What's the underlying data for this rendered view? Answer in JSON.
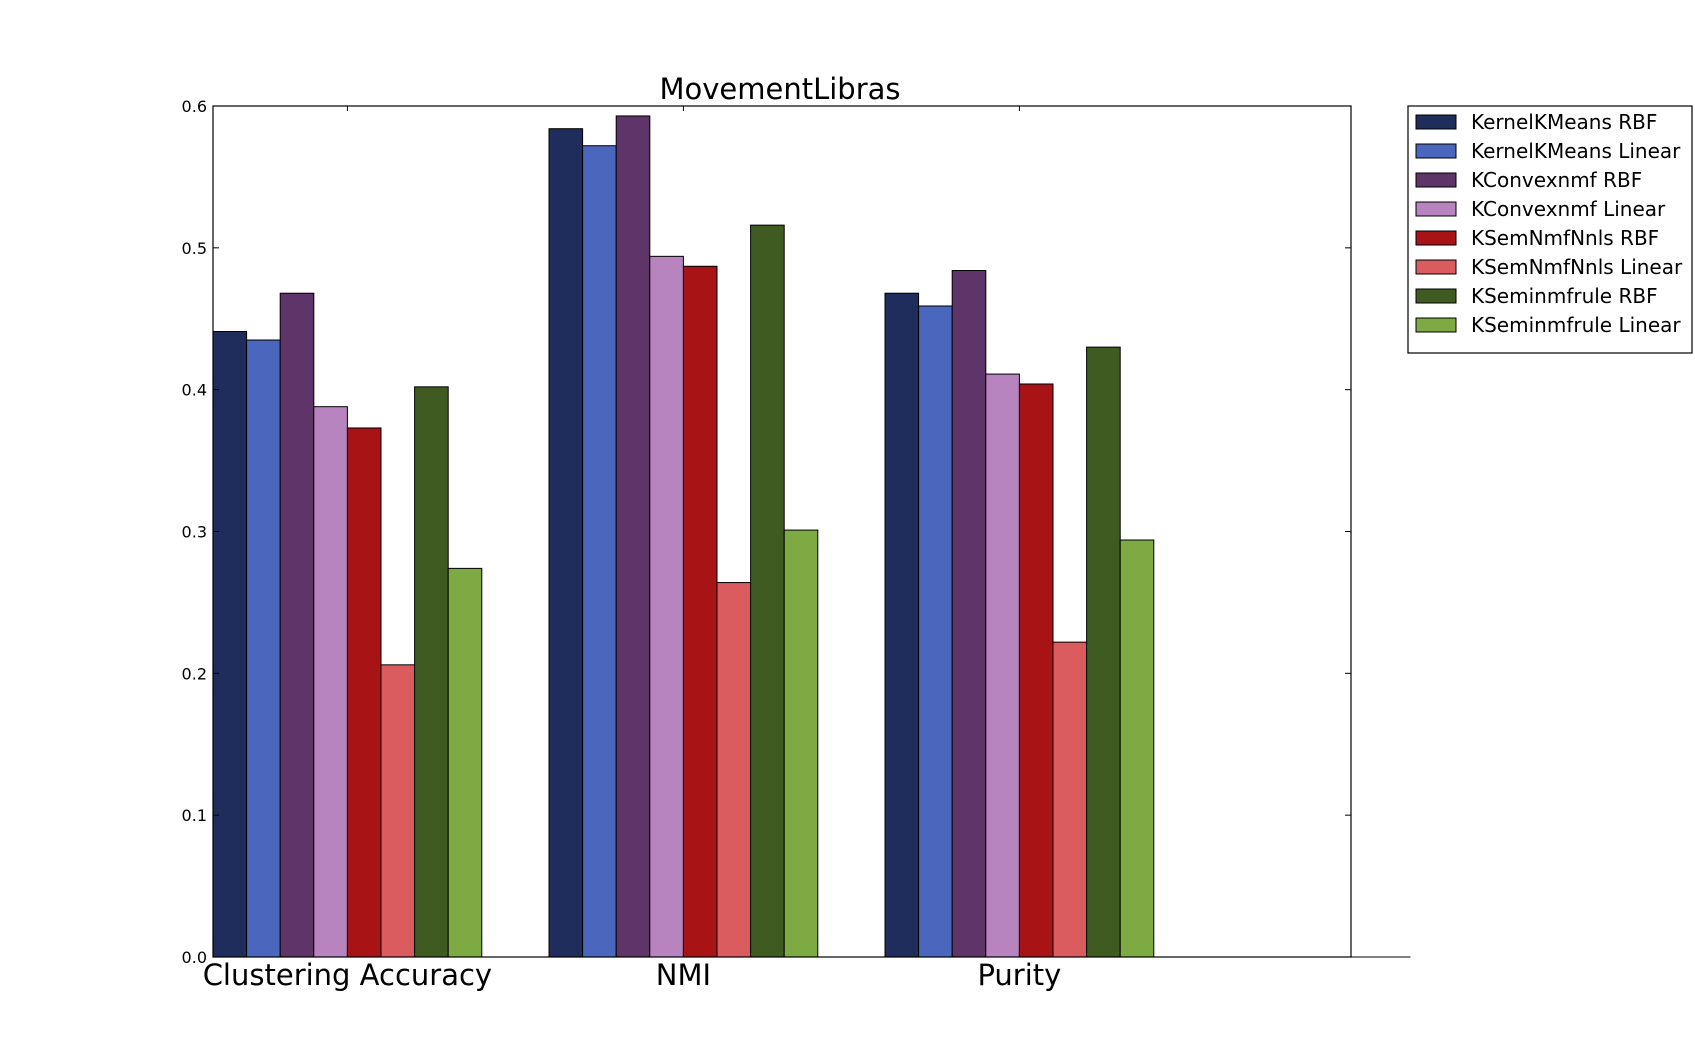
{
  "chart_data": {
    "type": "bar",
    "title": "MovementLibras",
    "xlabel": "",
    "ylabel": "",
    "categories": [
      "Clustering Accuracy",
      "NMI",
      "Purity"
    ],
    "y_ticks": [
      "0.0",
      "0.1",
      "0.2",
      "0.3",
      "0.4",
      "0.5",
      "0.6"
    ],
    "ylim": [
      0,
      0.6
    ],
    "legend_position": "outside-top-right",
    "grid": false,
    "series": [
      {
        "name": "KernelKMeans RBF",
        "color": "#1f2d5c",
        "values": [
          0.441,
          0.584,
          0.468
        ]
      },
      {
        "name": "KernelKMeans Linear",
        "color": "#4a66bd",
        "values": [
          0.435,
          0.572,
          0.459
        ]
      },
      {
        "name": "KConvexnmf RBF",
        "color": "#5f3569",
        "values": [
          0.468,
          0.593,
          0.484
        ]
      },
      {
        "name": "KConvexnmf Linear",
        "color": "#b784c0",
        "values": [
          0.388,
          0.494,
          0.411
        ]
      },
      {
        "name": "KSemNmfNnls RBF",
        "color": "#a81416",
        "values": [
          0.373,
          0.487,
          0.404
        ]
      },
      {
        "name": "KSemNmfNnls Linear",
        "color": "#db5c5f",
        "values": [
          0.206,
          0.264,
          0.222
        ]
      },
      {
        "name": "KSeminmfrule RBF",
        "color": "#3f5b22",
        "values": [
          0.402,
          0.516,
          0.43
        ]
      },
      {
        "name": "KSeminmfrule Linear",
        "color": "#7daa42",
        "values": [
          0.274,
          0.301,
          0.294
        ]
      }
    ]
  }
}
